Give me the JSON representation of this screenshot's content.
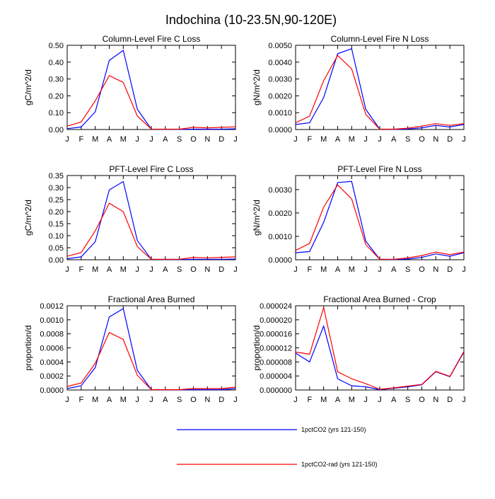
{
  "figure": {
    "title": "Indochina (10-23.5N,90-120E)",
    "months": [
      "J",
      "F",
      "M",
      "A",
      "M",
      "J",
      "J",
      "A",
      "S",
      "O",
      "N",
      "D",
      "J"
    ],
    "series_names": [
      "1pctCO2 (yrs 121-150)",
      "1pctCO2-rad (yrs 121-150)"
    ],
    "series_colors": [
      "#0000ff",
      "#ff0000"
    ]
  },
  "chart_data": [
    {
      "type": "line",
      "title": "Column-Level Fire C Loss",
      "ylabel": "gC/m^2/d",
      "x": [
        "J",
        "F",
        "M",
        "A",
        "M",
        "J",
        "J",
        "A",
        "S",
        "O",
        "N",
        "D",
        "J"
      ],
      "ylim": [
        0,
        0.5
      ],
      "yticks": [
        "0.00",
        "0.10",
        "0.20",
        "0.30",
        "0.40",
        "0.50"
      ],
      "ytick_values": [
        0,
        0.1,
        0.2,
        0.3,
        0.4,
        0.5
      ],
      "series": [
        {
          "values": [
            0.005,
            0.015,
            0.105,
            0.41,
            0.47,
            0.12,
            0.002,
            0.001,
            0.001,
            0.002,
            0.002,
            0.002,
            0.004
          ]
        },
        {
          "values": [
            0.02,
            0.045,
            0.17,
            0.32,
            0.28,
            0.08,
            0.003,
            0.002,
            0.002,
            0.013,
            0.01,
            0.013,
            0.016
          ]
        }
      ]
    },
    {
      "type": "line",
      "title": "Column-Level Fire N Loss",
      "ylabel": "gN/m^2/d",
      "x": [
        "J",
        "F",
        "M",
        "A",
        "M",
        "J",
        "J",
        "A",
        "S",
        "O",
        "N",
        "D",
        "J"
      ],
      "ylim": [
        0,
        0.005
      ],
      "yticks": [
        "0.0000",
        "0.0010",
        "0.0020",
        "0.0030",
        "0.0040",
        "0.0050"
      ],
      "ytick_values": [
        0,
        0.001,
        0.002,
        0.003,
        0.004,
        0.005
      ],
      "series": [
        {
          "values": [
            0.0003,
            0.0004,
            0.0019,
            0.0045,
            0.0048,
            0.0012,
            2e-05,
            1e-05,
            3e-05,
            0.0001,
            0.00025,
            0.00015,
            0.0003
          ]
        },
        {
          "values": [
            0.0004,
            0.0008,
            0.0029,
            0.0044,
            0.0036,
            0.0009,
            2e-05,
            2e-05,
            8e-05,
            0.0002,
            0.00035,
            0.00025,
            0.00035
          ]
        }
      ]
    },
    {
      "type": "line",
      "title": "PFT-Level Fire C Loss",
      "ylabel": "gC/m^2/d",
      "x": [
        "J",
        "F",
        "M",
        "A",
        "M",
        "J",
        "J",
        "A",
        "S",
        "O",
        "N",
        "D",
        "J"
      ],
      "ylim": [
        0,
        0.35
      ],
      "yticks": [
        "0.00",
        "0.05",
        "0.10",
        "0.15",
        "0.20",
        "0.25",
        "0.30",
        "0.35"
      ],
      "ytick_values": [
        0,
        0.05,
        0.1,
        0.15,
        0.2,
        0.25,
        0.3,
        0.35
      ],
      "series": [
        {
          "values": [
            0.004,
            0.012,
            0.075,
            0.29,
            0.325,
            0.08,
            0.002,
            0.001,
            0.001,
            0.002,
            0.002,
            0.002,
            0.003
          ]
        },
        {
          "values": [
            0.015,
            0.03,
            0.12,
            0.235,
            0.2,
            0.055,
            0.002,
            0.002,
            0.002,
            0.01,
            0.008,
            0.01,
            0.012
          ]
        }
      ]
    },
    {
      "type": "line",
      "title": "PFT-Level Fire N Loss",
      "ylabel": "gN/m^2/d",
      "x": [
        "J",
        "F",
        "M",
        "A",
        "M",
        "J",
        "J",
        "A",
        "S",
        "O",
        "N",
        "D",
        "J"
      ],
      "ylim": [
        0,
        0.0036
      ],
      "yticks": [
        "0.0000",
        "0.0010",
        "0.0020",
        "0.0030"
      ],
      "ytick_values": [
        0,
        0.001,
        0.002,
        0.003
      ],
      "series": [
        {
          "values": [
            0.0003,
            0.00035,
            0.0016,
            0.0033,
            0.00335,
            0.0008,
            2e-05,
            1e-05,
            3e-05,
            0.0001,
            0.00025,
            0.00015,
            0.0003
          ]
        },
        {
          "values": [
            0.0004,
            0.0007,
            0.00225,
            0.0032,
            0.0026,
            0.00065,
            2e-05,
            2e-05,
            8e-05,
            0.00018,
            0.00033,
            0.00022,
            0.00033
          ]
        }
      ]
    },
    {
      "type": "line",
      "title": "Fractional Area Burned",
      "ylabel": "proportion/d",
      "x": [
        "J",
        "F",
        "M",
        "A",
        "M",
        "J",
        "J",
        "A",
        "S",
        "O",
        "N",
        "D",
        "J"
      ],
      "ylim": [
        0,
        0.0012
      ],
      "yticks": [
        "0.0000",
        "0.0002",
        "0.0004",
        "0.0006",
        "0.0008",
        "0.0010",
        "0.0012"
      ],
      "ytick_values": [
        0,
        0.0002,
        0.0004,
        0.0006,
        0.0008,
        0.001,
        0.0012
      ],
      "series": [
        {
          "values": [
            2e-05,
            6e-05,
            0.00032,
            0.00104,
            0.00116,
            0.00028,
            5e-06,
            3e-06,
            3e-06,
            5e-06,
            5e-06,
            5e-06,
            2e-05
          ]
        },
        {
          "values": [
            5e-05,
            0.0001,
            0.00038,
            0.00082,
            0.00072,
            0.00021,
            5e-06,
            5e-06,
            5e-06,
            2e-05,
            2e-05,
            2e-05,
            4e-05
          ]
        }
      ]
    },
    {
      "type": "line",
      "title": "Fractional Area Burned - Crop",
      "ylabel": "proportion/d",
      "x": [
        "J",
        "F",
        "M",
        "A",
        "M",
        "J",
        "J",
        "A",
        "S",
        "O",
        "N",
        "D",
        "J"
      ],
      "ylim": [
        0,
        2.4e-05
      ],
      "yticks": [
        "0.000000",
        "0.000004",
        "0.000008",
        "0.000012",
        "0.000016",
        "0.000020",
        "0.000024"
      ],
      "ytick_values": [
        0,
        4e-06,
        8e-06,
        1.2e-05,
        1.6e-05,
        2e-05,
        2.4e-05
      ],
      "series": [
        {
          "values": [
            1.05e-05,
            8e-06,
            1.82e-05,
            3.2e-06,
            1.2e-06,
            9e-07,
            1e-07,
            5e-07,
            9e-07,
            1.5e-06,
            5.2e-06,
            3.8e-06,
            1.08e-05
          ]
        },
        {
          "values": [
            1.08e-05,
            1.02e-05,
            2.35e-05,
            5.2e-06,
            3.2e-06,
            1.8e-06,
            2e-07,
            6e-07,
            1.1e-06,
            1.6e-06,
            5.3e-06,
            3.9e-06,
            1.1e-05
          ]
        }
      ]
    }
  ]
}
